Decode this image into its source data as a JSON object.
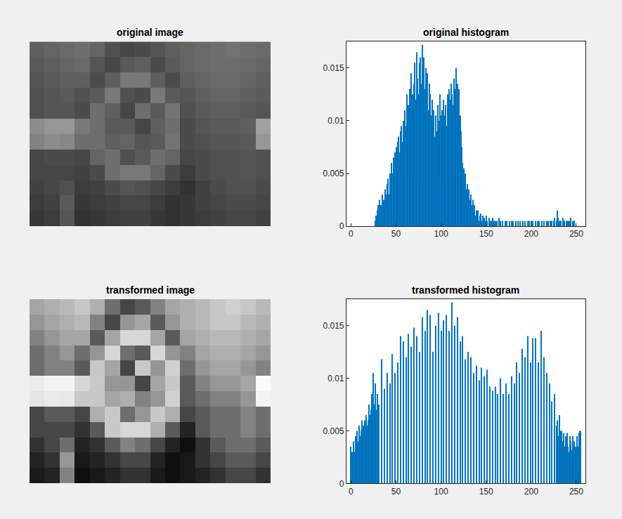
{
  "chart_data": [
    {
      "type": "heatmap",
      "title": "original image",
      "tick_labels": false,
      "colors": "gray",
      "clim": [
        0,
        255
      ],
      "cells": [
        [
          95,
          100,
          105,
          110,
          100,
          80,
          70,
          75,
          85,
          95,
          100,
          105,
          110,
          115,
          110,
          105
        ],
        [
          90,
          95,
          100,
          105,
          85,
          70,
          90,
          95,
          75,
          90,
          100,
          105,
          110,
          110,
          105,
          100
        ],
        [
          85,
          90,
          95,
          95,
          75,
          95,
          120,
          120,
          95,
          75,
          95,
          100,
          105,
          105,
          100,
          95
        ],
        [
          80,
          85,
          90,
          80,
          90,
          120,
          80,
          75,
          120,
          90,
          85,
          95,
          100,
          100,
          95,
          90
        ],
        [
          80,
          85,
          85,
          75,
          110,
          95,
          70,
          110,
          90,
          115,
          80,
          90,
          95,
          95,
          90,
          85
        ],
        [
          140,
          150,
          150,
          120,
          110,
          90,
          90,
          70,
          95,
          110,
          75,
          85,
          90,
          90,
          95,
          160
        ],
        [
          130,
          140,
          135,
          110,
          110,
          95,
          100,
          85,
          90,
          115,
          75,
          80,
          85,
          85,
          90,
          150
        ],
        [
          70,
          75,
          75,
          70,
          100,
          110,
          80,
          90,
          110,
          100,
          70,
          75,
          80,
          80,
          85,
          80
        ],
        [
          70,
          70,
          70,
          65,
          75,
          110,
          120,
          120,
          100,
          75,
          60,
          75,
          80,
          80,
          85,
          80
        ],
        [
          65,
          70,
          80,
          60,
          65,
          75,
          85,
          80,
          70,
          60,
          50,
          65,
          75,
          80,
          80,
          75
        ],
        [
          60,
          65,
          90,
          55,
          60,
          65,
          70,
          70,
          60,
          50,
          55,
          65,
          70,
          75,
          75,
          70
        ],
        [
          55,
          60,
          85,
          50,
          55,
          60,
          65,
          65,
          55,
          50,
          55,
          60,
          65,
          70,
          70,
          65
        ]
      ]
    },
    {
      "type": "bar",
      "title": "original histogram",
      "color": "#0072bd",
      "grid": false,
      "xlim": [
        -5,
        260
      ],
      "xticks": [
        0,
        50,
        100,
        150,
        200,
        250
      ],
      "ylim": [
        0,
        0.0175
      ],
      "yticks": [
        0,
        0.005,
        0.01,
        0.015
      ],
      "x": [
        27,
        28,
        29,
        30,
        31,
        32,
        33,
        34,
        35,
        36,
        37,
        38,
        39,
        40,
        41,
        42,
        43,
        44,
        45,
        46,
        47,
        48,
        49,
        50,
        51,
        52,
        53,
        54,
        55,
        56,
        57,
        58,
        59,
        60,
        61,
        62,
        63,
        64,
        65,
        66,
        67,
        68,
        69,
        70,
        71,
        72,
        73,
        74,
        75,
        76,
        77,
        78,
        79,
        80,
        81,
        82,
        83,
        84,
        85,
        86,
        87,
        88,
        89,
        90,
        91,
        92,
        93,
        94,
        95,
        96,
        97,
        98,
        99,
        100,
        101,
        102,
        103,
        104,
        105,
        106,
        107,
        108,
        109,
        110,
        111,
        112,
        113,
        114,
        115,
        116,
        117,
        118,
        119,
        120,
        121,
        122,
        123,
        124,
        125,
        126,
        127,
        128,
        129,
        130,
        131,
        132,
        133,
        134,
        135,
        136,
        137,
        138,
        139,
        140,
        141,
        142,
        143,
        144,
        145,
        146,
        147,
        148,
        149,
        150,
        151,
        152,
        153,
        154,
        155,
        156,
        157,
        158,
        159,
        160,
        161,
        162,
        163,
        164,
        165,
        166,
        167,
        168,
        169,
        170,
        171,
        172,
        173,
        174,
        175,
        176,
        177,
        178,
        179,
        180,
        181,
        182,
        183,
        184,
        185,
        186,
        187,
        188,
        189,
        190,
        191,
        192,
        193,
        194,
        195,
        196,
        197,
        198,
        199,
        200,
        201,
        202,
        203,
        204,
        205,
        206,
        207,
        208,
        209,
        210,
        211,
        212,
        213,
        214,
        215,
        216,
        217,
        218,
        219,
        220,
        221,
        222,
        223,
        224,
        225,
        226,
        227,
        228,
        229,
        230,
        231,
        232,
        233,
        234,
        235,
        236,
        237,
        238,
        239,
        240,
        241,
        242,
        243,
        244,
        245,
        246,
        247,
        248
      ],
      "values": [
        0.0005,
        0.001,
        0.0015,
        0.002,
        0.001,
        0.0025,
        0.002,
        0.0015,
        0.003,
        0.0025,
        0.002,
        0.0035,
        0.003,
        0.004,
        0.0045,
        0.003,
        0.005,
        0.004,
        0.006,
        0.005,
        0.0065,
        0.0055,
        0.007,
        0.0075,
        0.006,
        0.008,
        0.0085,
        0.007,
        0.009,
        0.0095,
        0.008,
        0.01,
        0.0085,
        0.011,
        0.0095,
        0.0125,
        0.01,
        0.0115,
        0.013,
        0.0105,
        0.0145,
        0.0125,
        0.011,
        0.0135,
        0.0155,
        0.012,
        0.0165,
        0.014,
        0.0125,
        0.0155,
        0.016,
        0.0135,
        0.0172,
        0.0145,
        0.016,
        0.013,
        0.015,
        0.0125,
        0.0145,
        0.011,
        0.0135,
        0.0125,
        0.0105,
        0.012,
        0.0095,
        0.011,
        0.0085,
        0.0105,
        0.009,
        0.0115,
        0.0095,
        0.01,
        0.0125,
        0.0105,
        0.011,
        0.0095,
        0.012,
        0.0105,
        0.0115,
        0.0095,
        0.0125,
        0.011,
        0.013,
        0.012,
        0.0135,
        0.0125,
        0.0115,
        0.014,
        0.013,
        0.0125,
        0.015,
        0.0135,
        0.012,
        0.013,
        0.0105,
        0.009,
        0.0075,
        0.006,
        0.0055,
        0.0045,
        0.005,
        0.0035,
        0.004,
        0.003,
        0.0035,
        0.0025,
        0.003,
        0.002,
        0.0025,
        0.0015,
        0.002,
        0.001,
        0.0015,
        0.001,
        0.0015,
        0.0005,
        0.001,
        0.0012,
        0.0005,
        0.001,
        0,
        0.0008,
        0.0005,
        0.001,
        0.0005,
        0,
        0.0008,
        0.0005,
        0,
        0.0005,
        0.0008,
        0,
        0.0005,
        0.0005,
        0,
        0.0005,
        0,
        0.0008,
        0,
        0.0005,
        0,
        0.0005,
        0,
        0,
        0.0005,
        0,
        0.0005,
        0,
        0,
        0.0005,
        0,
        0.0005,
        0,
        0.0005,
        0,
        0,
        0.0005,
        0,
        0.0005,
        0,
        0,
        0.0005,
        0,
        0,
        0.0005,
        0,
        0.0005,
        0,
        0,
        0.0005,
        0,
        0.0005,
        0,
        0.0005,
        0,
        0.0005,
        0,
        0,
        0.0005,
        0,
        0.0005,
        0,
        0.0005,
        0,
        0,
        0.0005,
        0,
        0.0005,
        0,
        0,
        0.0005,
        0,
        0.0005,
        0,
        0.0005,
        0,
        0.0005,
        0,
        0.0005,
        0.0008,
        0,
        0.0005,
        0.0015,
        0.0008,
        0.0005,
        0,
        0.0005,
        0,
        0.0008,
        0,
        0.0005,
        0,
        0.0005,
        0,
        0.0005,
        0.0005,
        0,
        0.0008,
        0,
        0.0005,
        0,
        0.0005
      ]
    },
    {
      "type": "heatmap",
      "title": "transformed image",
      "tick_labels": false,
      "colors": "gray",
      "clim": [
        0,
        255
      ],
      "cells": [
        [
          165,
          175,
          185,
          200,
          175,
          110,
          70,
          90,
          130,
          165,
          175,
          185,
          200,
          208,
          200,
          185
        ],
        [
          150,
          165,
          175,
          185,
          130,
          70,
          150,
          165,
          90,
          150,
          175,
          185,
          200,
          200,
          185,
          175
        ],
        [
          130,
          150,
          165,
          165,
          90,
          165,
          215,
          215,
          165,
          90,
          165,
          175,
          185,
          185,
          175,
          165
        ],
        [
          110,
          130,
          150,
          110,
          150,
          215,
          110,
          90,
          215,
          150,
          130,
          165,
          175,
          175,
          165,
          150
        ],
        [
          110,
          130,
          130,
          90,
          200,
          165,
          70,
          200,
          150,
          208,
          110,
          150,
          165,
          165,
          150,
          130
        ],
        [
          235,
          243,
          243,
          215,
          200,
          150,
          150,
          70,
          165,
          200,
          90,
          130,
          150,
          150,
          165,
          250
        ],
        [
          228,
          235,
          232,
          200,
          200,
          165,
          175,
          130,
          150,
          208,
          90,
          110,
          130,
          130,
          150,
          243
        ],
        [
          70,
          90,
          90,
          70,
          175,
          200,
          110,
          150,
          200,
          175,
          70,
          90,
          110,
          110,
          130,
          110
        ],
        [
          70,
          70,
          70,
          50,
          90,
          200,
          215,
          215,
          175,
          90,
          35,
          90,
          110,
          110,
          130,
          110
        ],
        [
          50,
          70,
          110,
          35,
          50,
          90,
          130,
          110,
          70,
          35,
          15,
          50,
          90,
          110,
          110,
          90
        ],
        [
          35,
          50,
          150,
          25,
          35,
          50,
          70,
          70,
          35,
          15,
          25,
          50,
          70,
          90,
          90,
          70
        ],
        [
          25,
          35,
          130,
          15,
          25,
          35,
          50,
          50,
          25,
          15,
          25,
          35,
          50,
          70,
          70,
          50
        ]
      ]
    },
    {
      "type": "bar",
      "title": "transformed histogram",
      "color": "#0072bd",
      "grid": false,
      "xlim": [
        -5,
        260
      ],
      "xticks": [
        0,
        50,
        100,
        150,
        200,
        250
      ],
      "ylim": [
        0,
        0.0175
      ],
      "yticks": [
        0,
        0.005,
        0.01,
        0.015
      ],
      "x": [
        0,
        1,
        2,
        3,
        4,
        5,
        6,
        7,
        8,
        9,
        10,
        11,
        12,
        13,
        14,
        15,
        16,
        17,
        18,
        19,
        20,
        21,
        22,
        23,
        24,
        25,
        26,
        27,
        28,
        29,
        31,
        34,
        37,
        40,
        43,
        46,
        49,
        52,
        55,
        58,
        61,
        64,
        67,
        70,
        73,
        76,
        79,
        82,
        85,
        88,
        91,
        94,
        97,
        100,
        103,
        106,
        109,
        112,
        115,
        118,
        121,
        124,
        127,
        130,
        133,
        136,
        139,
        142,
        145,
        148,
        151,
        154,
        157,
        160,
        163,
        166,
        169,
        172,
        175,
        178,
        181,
        184,
        187,
        190,
        193,
        196,
        199,
        202,
        205,
        208,
        211,
        214,
        217,
        220,
        223,
        226,
        228,
        229,
        230,
        231,
        232,
        233,
        234,
        235,
        236,
        237,
        238,
        239,
        240,
        241,
        242,
        243,
        244,
        245,
        246,
        247,
        248,
        249,
        250,
        251,
        252,
        253,
        254,
        255
      ],
      "values": [
        0.0035,
        0.003,
        0.0025,
        0.004,
        0.003,
        0.0045,
        0.0035,
        0.005,
        0.004,
        0.0055,
        0.0045,
        0.005,
        0.006,
        0.0045,
        0.0055,
        0.006,
        0.005,
        0.0065,
        0.0055,
        0.006,
        0.0075,
        0.0065,
        0.007,
        0.0085,
        0.006,
        0.0105,
        0.0075,
        0.0095,
        0.007,
        0.0085,
        0.0075,
        0.0118,
        0.009,
        0.0105,
        0.0095,
        0.0123,
        0.0105,
        0.0115,
        0.014,
        0.0135,
        0.012,
        0.0142,
        0.013,
        0.0148,
        0.014,
        0.0125,
        0.0158,
        0.0145,
        0.0165,
        0.016,
        0.0125,
        0.015,
        0.0162,
        0.0145,
        0.0155,
        0.016,
        0.0145,
        0.0172,
        0.015,
        0.0158,
        0.0135,
        0.014,
        0.0118,
        0.0125,
        0.012,
        0.0105,
        0.0112,
        0.0098,
        0.011,
        0.0102,
        0.0108,
        0.0092,
        0.0088,
        0.0092,
        0.0085,
        0.01,
        0.0085,
        0.0095,
        0.0085,
        0.0102,
        0.0095,
        0.0115,
        0.0105,
        0.0128,
        0.012,
        0.014,
        0.0115,
        0.0138,
        0.0138,
        0.0115,
        0.0145,
        0.012,
        0.0105,
        0.0095,
        0.0078,
        0.0085,
        0.0055,
        0.006,
        0.0045,
        0.0065,
        0.005,
        0.0045,
        0.005,
        0.004,
        0.0048,
        0.0035,
        0.0045,
        0.004,
        0.0048,
        0.0035,
        0.003,
        0.0045,
        0.004,
        0.0032,
        0.0045,
        0.0028,
        0.004,
        0.0035,
        0.003,
        0.0045,
        0.0035,
        0.0048,
        0.005,
        0.005
      ]
    }
  ]
}
